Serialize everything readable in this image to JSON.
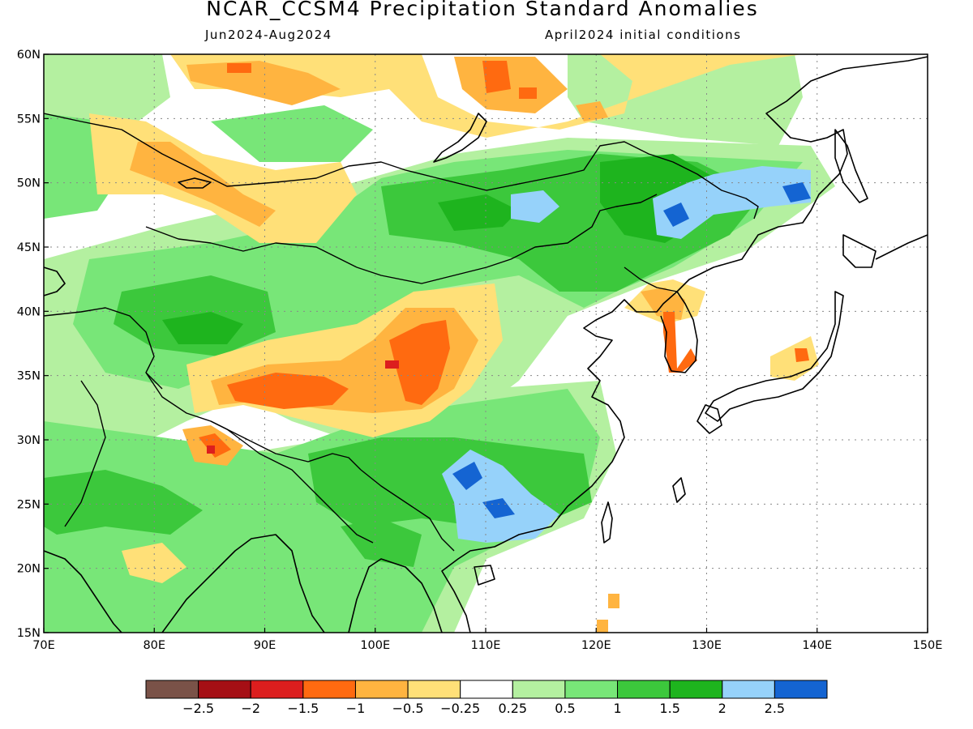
{
  "title": "NCAR_CCSM4 Precipitation Standard Anomalies",
  "subtitle_left": "Jun2024-Aug2024",
  "subtitle_right": "April2024 initial conditions",
  "map": {
    "lon_range": [
      70,
      150
    ],
    "lat_range": [
      15,
      60
    ],
    "lon_labels": [
      "70E",
      "80E",
      "90E",
      "100E",
      "110E",
      "120E",
      "130E",
      "140E",
      "150E"
    ],
    "lat_labels": [
      "60N",
      "55N",
      "50N",
      "45N",
      "40N",
      "35N",
      "30N",
      "25N",
      "20N",
      "15N"
    ],
    "grid": "dotted"
  },
  "colorbar": {
    "colors": [
      "#7a5248",
      "#a50f15",
      "#dc1e1e",
      "#ff6a10",
      "#ffb440",
      "#ffe078",
      "#ffffff",
      "#b4f0a0",
      "#78e678",
      "#3cc83c",
      "#1eb41e",
      "#96d2fa",
      "#1464d2"
    ],
    "labels": [
      "-2.5",
      "-2",
      "-1.5",
      "-1",
      "-0.5",
      "-0.25",
      "0.25",
      "0.5",
      "1",
      "1.5",
      "2",
      "2.5"
    ]
  }
}
